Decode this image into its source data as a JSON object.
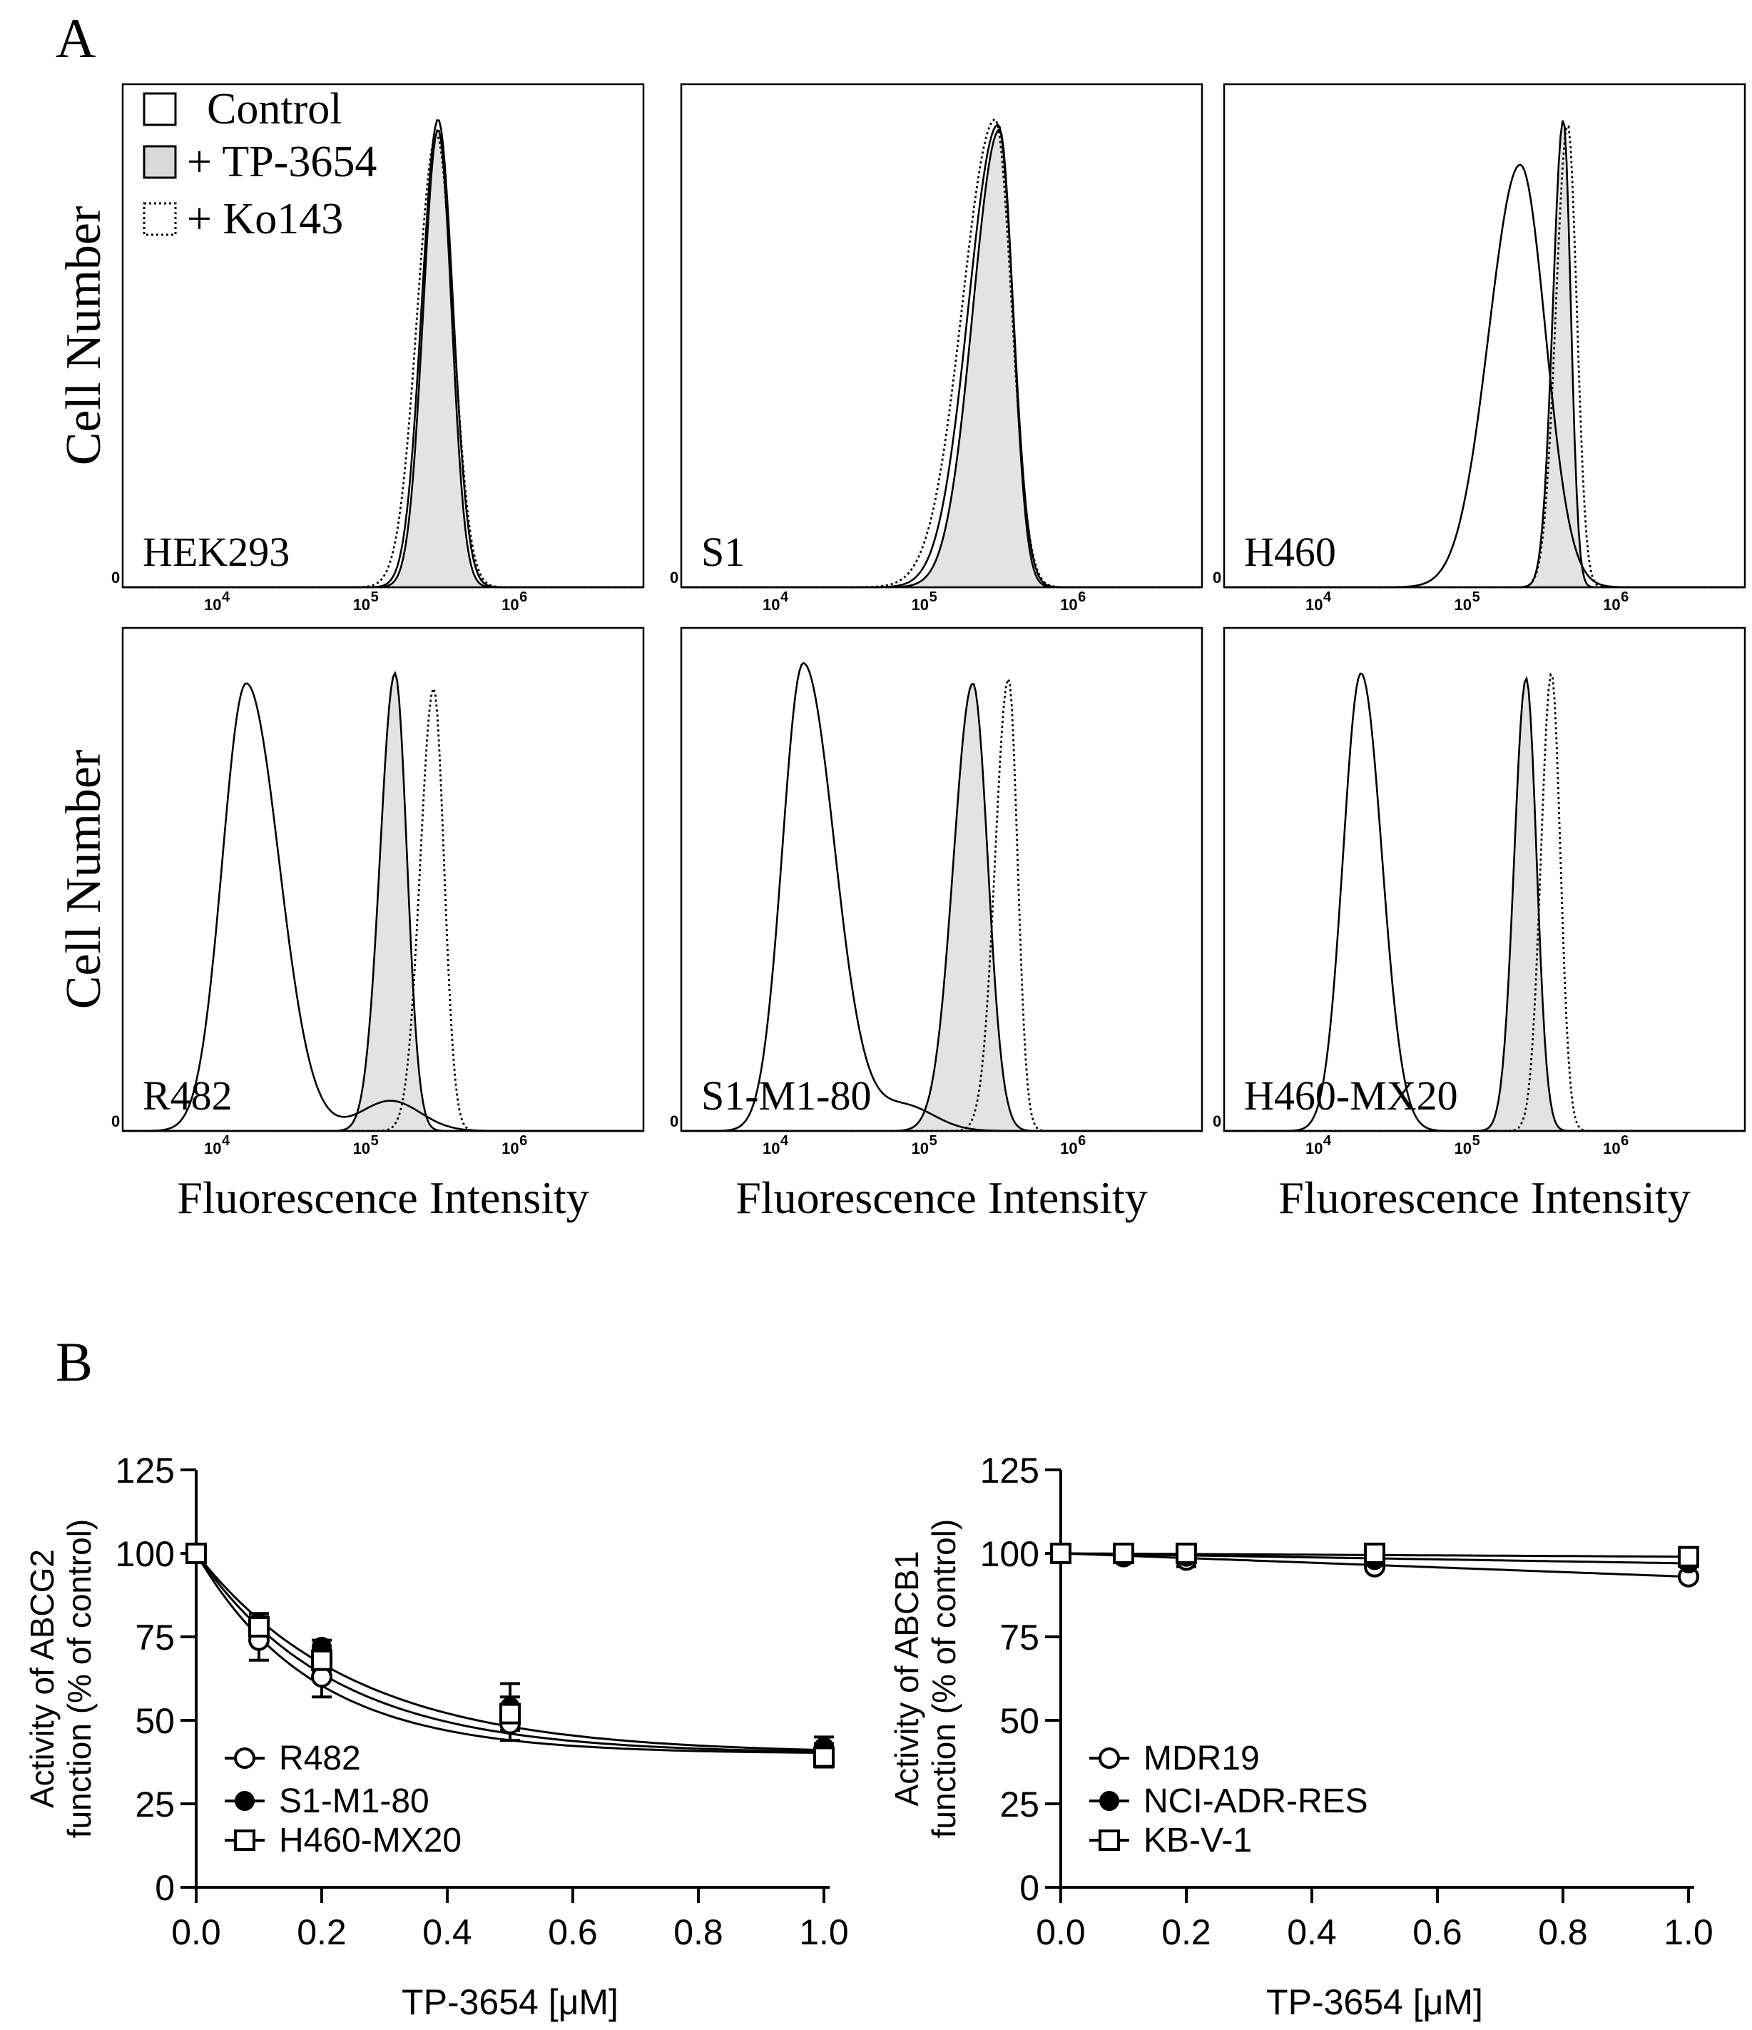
{
  "panel_labels": {
    "a": "A",
    "b": "B"
  },
  "chart_data": [
    {
      "type": "histogram",
      "panel": "A",
      "ylabel": "Cell Number",
      "xlabel": "Fluorescence Intensity",
      "x_scale": "log10",
      "xlim_log10": [
        3.3,
        6.8
      ],
      "x_ticks": [
        "10",
        "10",
        "10"
      ],
      "x_tick_exponents": [
        "4",
        "5",
        "6"
      ],
      "y_tick_zero": "0",
      "legend": [
        "Control",
        "+ TP-3654",
        "+ Ko143"
      ],
      "legend_styles": [
        "solid-open",
        "solid-gray-fill",
        "dotted-open"
      ],
      "plots": [
        {
          "label": "HEK293",
          "row": 0,
          "col": 0,
          "series": [
            {
              "name": "Control",
              "peak_log10": 5.42,
              "sigma_left": 0.11,
              "sigma_right": 0.1,
              "height": 0.93
            },
            {
              "name": "+ TP-3654",
              "peak_log10": 5.42,
              "sigma_left": 0.1,
              "sigma_right": 0.09,
              "height": 0.91
            },
            {
              "name": "+ Ko143",
              "peak_log10": 5.41,
              "sigma_left": 0.13,
              "sigma_right": 0.11,
              "height": 0.9
            }
          ]
        },
        {
          "label": "S1",
          "row": 0,
          "col": 1,
          "series": [
            {
              "name": "Control",
              "peak_log10": 5.43,
              "sigma_left": 0.2,
              "sigma_right": 0.1,
              "height": 0.92
            },
            {
              "name": "+ TP-3654",
              "peak_log10": 5.44,
              "sigma_left": 0.18,
              "sigma_right": 0.09,
              "height": 0.91
            },
            {
              "name": "+ Ko143",
              "peak_log10": 5.41,
              "sigma_left": 0.22,
              "sigma_right": 0.11,
              "height": 0.93
            }
          ]
        },
        {
          "label": "H460",
          "row": 0,
          "col": 2,
          "series": [
            {
              "name": "Control",
              "peak_log10": 5.29,
              "sigma_left": 0.21,
              "sigma_right": 0.17,
              "height": 0.84
            },
            {
              "name": "+ TP-3654",
              "peak_log10": 5.58,
              "sigma_left": 0.07,
              "sigma_right": 0.05,
              "height": 0.93
            },
            {
              "name": "+ Ko143",
              "peak_log10": 5.61,
              "sigma_left": 0.08,
              "sigma_right": 0.06,
              "height": 0.92
            }
          ]
        },
        {
          "label": "R482",
          "row": 1,
          "col": 0,
          "series": [
            {
              "name": "Control",
              "peak_log10": 4.13,
              "sigma_left": 0.16,
              "sigma_right": 0.22,
              "height": 0.89,
              "shoulder_log10": 5.1,
              "shoulder_height": 0.06
            },
            {
              "name": "+ TP-3654",
              "peak_log10": 5.13,
              "sigma_left": 0.1,
              "sigma_right": 0.08,
              "height": 0.91
            },
            {
              "name": "+ Ko143",
              "peak_log10": 5.39,
              "sigma_left": 0.09,
              "sigma_right": 0.07,
              "height": 0.88
            }
          ]
        },
        {
          "label": "S1-M1-80",
          "row": 1,
          "col": 1,
          "series": [
            {
              "name": "Control",
              "peak_log10": 4.12,
              "sigma_left": 0.14,
              "sigma_right": 0.21,
              "height": 0.93,
              "shoulder_log10": 4.8,
              "shoulder_height": 0.05
            },
            {
              "name": "+ TP-3654",
              "peak_log10": 5.26,
              "sigma_left": 0.13,
              "sigma_right": 0.1,
              "height": 0.89
            },
            {
              "name": "+ Ko143",
              "peak_log10": 5.5,
              "sigma_left": 0.09,
              "sigma_right": 0.06,
              "height": 0.9
            }
          ]
        },
        {
          "label": "H460-MX20",
          "row": 1,
          "col": 2,
          "series": [
            {
              "name": "Control",
              "peak_log10": 4.22,
              "sigma_left": 0.12,
              "sigma_right": 0.14,
              "height": 0.91
            },
            {
              "name": "+ TP-3654",
              "peak_log10": 5.33,
              "sigma_left": 0.08,
              "sigma_right": 0.07,
              "height": 0.9
            },
            {
              "name": "+ Ko143",
              "peak_log10": 5.5,
              "sigma_left": 0.07,
              "sigma_right": 0.06,
              "height": 0.91
            }
          ]
        }
      ]
    },
    {
      "type": "line",
      "panel": "B",
      "position": "left",
      "xlabel": "TP-3654 [μM]",
      "ylabel_lines": [
        "Activity of ABCG2",
        "function (% of control)"
      ],
      "xlim": [
        0,
        1.0
      ],
      "ylim": [
        0,
        125
      ],
      "x_ticks": [
        "0.0",
        "0.2",
        "0.4",
        "0.6",
        "0.8",
        "1.0"
      ],
      "y_ticks": [
        "0",
        "25",
        "50",
        "75",
        "100",
        "125"
      ],
      "legend_position": "bottom-left",
      "x": [
        0,
        0.1,
        0.2,
        0.5,
        1.0
      ],
      "series": [
        {
          "name": "R482",
          "marker": "open-circle",
          "values": [
            100,
            74,
            63,
            49,
            41
          ],
          "errors": [
            0,
            6,
            6,
            5,
            2
          ]
        },
        {
          "name": "S1-M1-80",
          "marker": "filled-circle",
          "values": [
            100,
            79,
            72,
            54,
            42
          ],
          "errors": [
            0,
            3,
            2,
            7,
            3
          ]
        },
        {
          "name": "H460-MX20",
          "marker": "open-square",
          "values": [
            100,
            78,
            68,
            52,
            39
          ],
          "errors": [
            0,
            3,
            3,
            5,
            3
          ]
        }
      ],
      "fits": [
        {
          "name": "R482",
          "plateau": 40,
          "k": 5.4
        },
        {
          "name": "S1-M1-80",
          "plateau": 40,
          "k": 4.0
        },
        {
          "name": "H460-MX20",
          "plateau": 40,
          "k": 4.6
        }
      ]
    },
    {
      "type": "line",
      "panel": "B",
      "position": "right",
      "xlabel": "TP-3654 [μM]",
      "ylabel_lines": [
        "Activity of ABCB1",
        "function (% of control)"
      ],
      "xlim": [
        0,
        1.0
      ],
      "ylim": [
        0,
        125
      ],
      "x_ticks": [
        "0.0",
        "0.2",
        "0.4",
        "0.6",
        "0.8",
        "1.0"
      ],
      "y_ticks": [
        "0",
        "25",
        "50",
        "75",
        "100",
        "125"
      ],
      "legend_position": "bottom-left",
      "x": [
        0,
        0.1,
        0.2,
        0.5,
        1.0
      ],
      "series": [
        {
          "name": "MDR19",
          "marker": "open-circle",
          "values": [
            100,
            99,
            98,
            96,
            93
          ],
          "errors": [
            0,
            1,
            2,
            1,
            1
          ]
        },
        {
          "name": "NCI-ADR-RES",
          "marker": "filled-circle",
          "values": [
            100,
            99,
            99,
            98,
            97
          ],
          "errors": [
            0,
            1,
            1,
            1,
            1
          ]
        },
        {
          "name": "KB-V-1",
          "marker": "open-square",
          "values": [
            100,
            100,
            100,
            100,
            99
          ],
          "errors": [
            0,
            1,
            1,
            1,
            1
          ]
        }
      ]
    }
  ]
}
